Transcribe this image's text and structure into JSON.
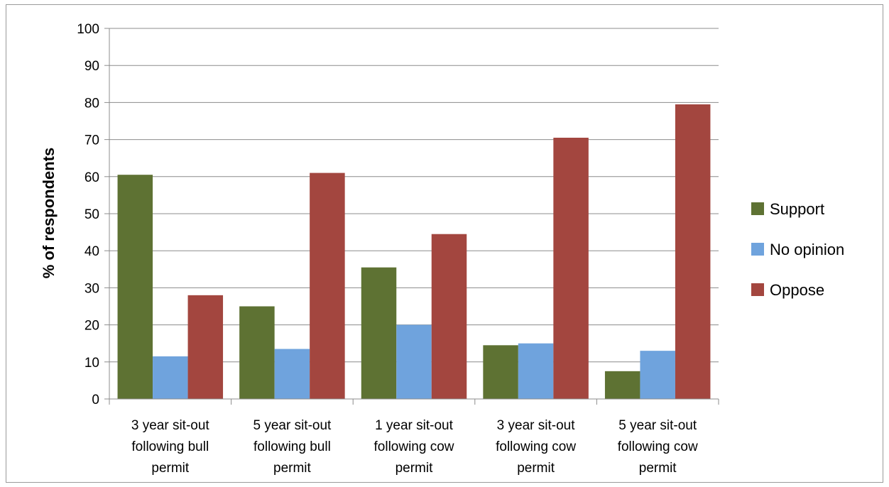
{
  "chart_data": {
    "type": "bar",
    "title": "",
    "xlabel": "",
    "ylabel": "% of respondents",
    "ylim": [
      0,
      100
    ],
    "yticks": [
      0,
      10,
      20,
      30,
      40,
      50,
      60,
      70,
      80,
      90,
      100
    ],
    "grid": true,
    "legend_position": "right",
    "categories": [
      [
        "3 year sit-out",
        "following bull",
        "permit"
      ],
      [
        "5 year sit-out",
        "following bull",
        "permit"
      ],
      [
        "1 year sit-out",
        "following cow",
        "permit"
      ],
      [
        "3 year sit-out",
        "following cow",
        "permit"
      ],
      [
        "5 year sit-out",
        "following cow",
        "permit"
      ]
    ],
    "series": [
      {
        "name": "Support",
        "color": "#5e7233",
        "values": [
          60.5,
          25,
          35.5,
          14.5,
          7.5
        ]
      },
      {
        "name": "No opinion",
        "color": "#6fa3dd",
        "values": [
          11.5,
          13.5,
          20,
          15,
          13
        ]
      },
      {
        "name": "Oppose",
        "color": "#a3463f",
        "values": [
          28,
          61,
          44.5,
          70.5,
          79.5
        ]
      }
    ]
  }
}
